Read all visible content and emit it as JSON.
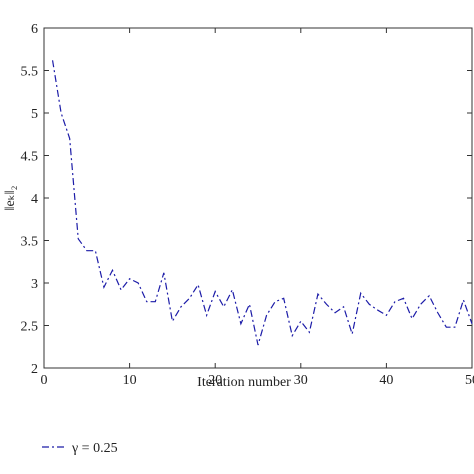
{
  "chart_data": {
    "type": "line",
    "x_label": "Iteration number",
    "y_label": "‖eₖ‖₂",
    "x": [
      1,
      2,
      3,
      4,
      5,
      6,
      7,
      8,
      9,
      10,
      11,
      12,
      13,
      14,
      15,
      16,
      17,
      18,
      19,
      20,
      21,
      22,
      23,
      24,
      25,
      26,
      27,
      28,
      29,
      30,
      31,
      32,
      33,
      34,
      35,
      36,
      37,
      38,
      39,
      40,
      41,
      42,
      43,
      44,
      45,
      46,
      47,
      48,
      49,
      50
    ],
    "series": [
      {
        "name": "γ = 0.25",
        "color": "#1c1ca8",
        "values": [
          5.62,
          5.0,
          4.7,
          3.52,
          3.38,
          3.38,
          2.95,
          3.15,
          2.92,
          3.05,
          3.0,
          2.78,
          2.78,
          3.12,
          2.55,
          2.72,
          2.82,
          2.98,
          2.62,
          2.9,
          2.72,
          2.92,
          2.52,
          2.75,
          2.27,
          2.62,
          2.78,
          2.82,
          2.38,
          2.55,
          2.42,
          2.87,
          2.75,
          2.65,
          2.72,
          2.4,
          2.88,
          2.75,
          2.68,
          2.62,
          2.78,
          2.82,
          2.58,
          2.75,
          2.85,
          2.65,
          2.48,
          2.48,
          2.8,
          2.52
        ]
      }
    ],
    "xlim": [
      0,
      50
    ],
    "ylim": [
      2,
      6
    ],
    "xticks": [
      0,
      10,
      20,
      30,
      40,
      50
    ],
    "yticks": [
      2,
      2.5,
      3,
      3.5,
      4,
      4.5,
      5,
      5.5,
      6
    ],
    "line_style": "dashdot",
    "legend": "bottom-left"
  }
}
